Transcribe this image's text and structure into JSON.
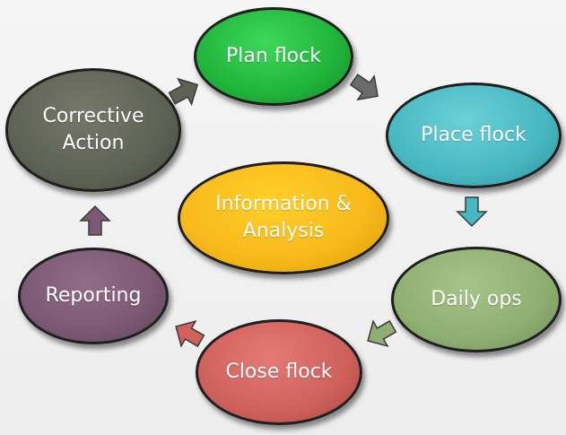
{
  "nodes": {
    "plan_flock": "Plan flock",
    "place_flock": "Place flock",
    "daily_ops": "Daily ops",
    "close_flock": "Close flock",
    "reporting": "Reporting",
    "corrective_action": "Corrective\nAction",
    "information_analysis": "Information &\nAnalysis"
  },
  "colors": {
    "plan_flock": "#1fb43a",
    "place_flock": "#47b7c1",
    "daily_ops": "#8fae71",
    "close_flock": "#d0605b",
    "reporting": "#7c5874",
    "corrective_action": "#5e6255",
    "information_analysis": "#f8b81a"
  },
  "arrows": [
    {
      "from": "corrective_action",
      "to": "plan_flock",
      "color": "#5e6255",
      "icon": "block-arrow-icon"
    },
    {
      "from": "plan_flock",
      "to": "place_flock",
      "color": "#6b6b6b",
      "icon": "block-arrow-icon"
    },
    {
      "from": "place_flock",
      "to": "daily_ops",
      "color": "#47b7c1",
      "icon": "block-arrow-icon"
    },
    {
      "from": "daily_ops",
      "to": "close_flock",
      "color": "#8fae71",
      "icon": "block-arrow-icon"
    },
    {
      "from": "close_flock",
      "to": "reporting",
      "color": "#d0605b",
      "icon": "block-arrow-icon"
    },
    {
      "from": "reporting",
      "to": "corrective_action",
      "color": "#7c5874",
      "icon": "block-arrow-icon"
    }
  ]
}
